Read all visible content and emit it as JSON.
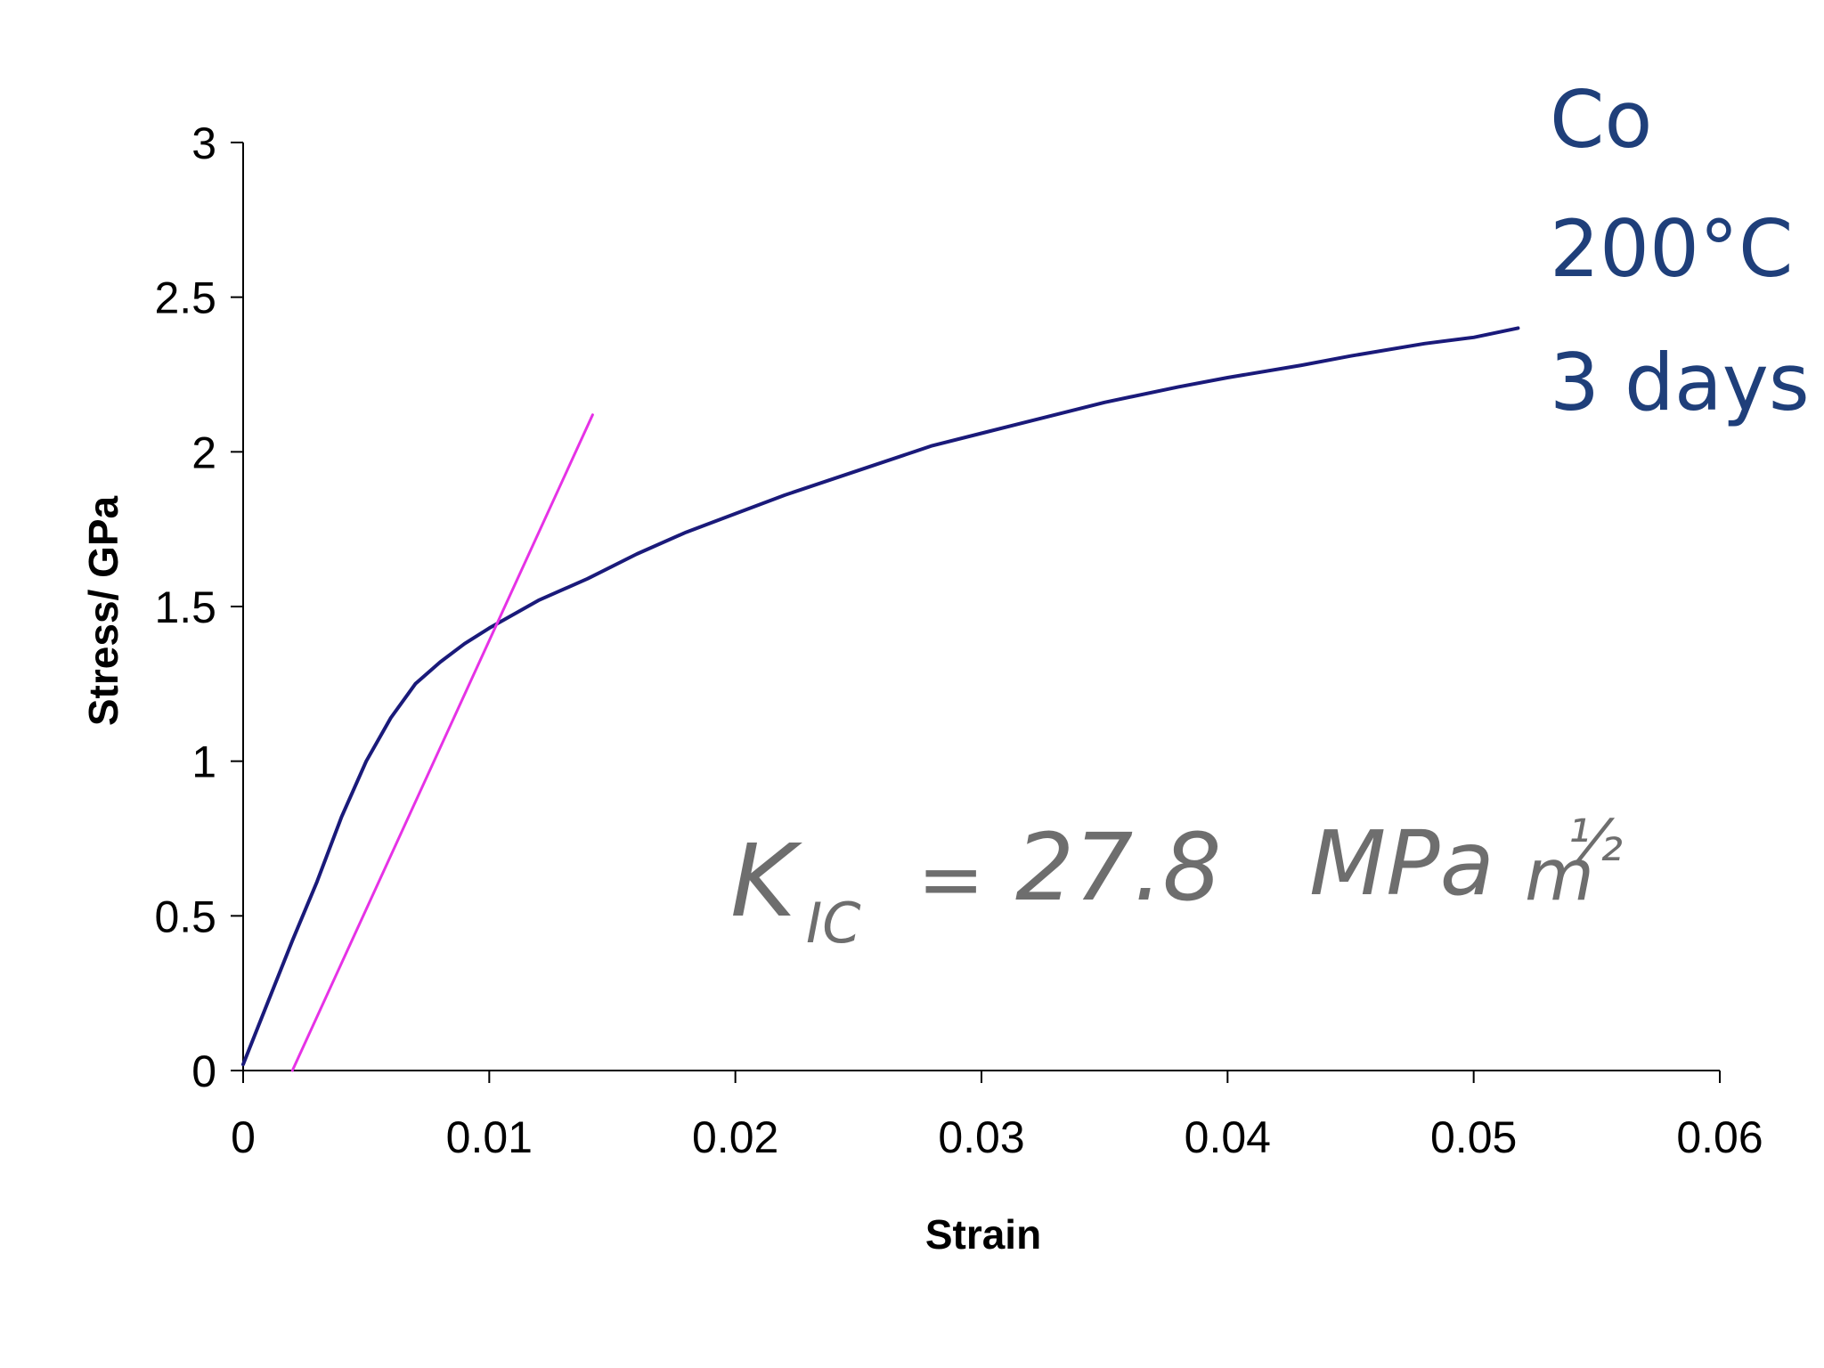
{
  "chart_data": {
    "type": "line",
    "title": "",
    "xlabel": "Strain",
    "ylabel": "Stress/ GPa",
    "xlim": [
      0,
      0.06
    ],
    "ylim": [
      0,
      3
    ],
    "x_ticks": [
      "0",
      "0.01",
      "0.02",
      "0.03",
      "0.04",
      "0.05",
      "0.06"
    ],
    "y_ticks": [
      "0",
      "0.5",
      "1",
      "1.5",
      "2",
      "2.5",
      "3"
    ],
    "grid": false,
    "series": [
      {
        "color": "#1a1a7a",
        "x": [
          0,
          0.001,
          0.002,
          0.003,
          0.004,
          0.005,
          0.006,
          0.007,
          0.008,
          0.009,
          0.01,
          0.012,
          0.014,
          0.016,
          0.018,
          0.02,
          0.022,
          0.025,
          0.028,
          0.03,
          0.033,
          0.035,
          0.038,
          0.04,
          0.043,
          0.045,
          0.048,
          0.05,
          0.0518
        ],
        "y": [
          0.02,
          0.22,
          0.42,
          0.61,
          0.82,
          1.0,
          1.14,
          1.25,
          1.32,
          1.38,
          1.43,
          1.52,
          1.59,
          1.67,
          1.74,
          1.8,
          1.86,
          1.94,
          2.02,
          2.06,
          2.12,
          2.16,
          2.21,
          2.24,
          2.28,
          2.31,
          2.35,
          2.37,
          2.4
        ]
      },
      {
        "color": "#e632e6",
        "x": [
          0.002,
          0.0142
        ],
        "y": [
          0,
          2.12
        ]
      }
    ],
    "annotations": [
      {
        "text": "Co",
        "color": "#1f3f7a"
      },
      {
        "text": "200°C",
        "color": "#1f3f7a"
      },
      {
        "text": "3 days",
        "color": "#1f3f7a"
      }
    ],
    "handwritten": {
      "k": "K",
      "sub": "IC",
      "eq": "=",
      "value": "27.8",
      "unit": "MPa",
      "m": "m",
      "exp": "½"
    }
  }
}
